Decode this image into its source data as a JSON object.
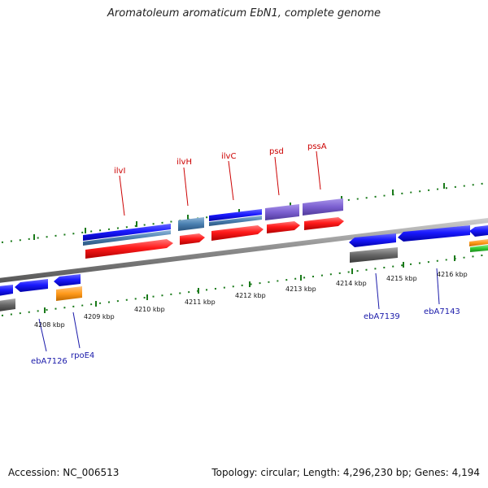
{
  "title": "Aromatoleum aromaticum EbN1, complete genome",
  "footer": {
    "accession": "Accession: NC_006513",
    "summary": "Topology: circular; Length: 4,296,230 bp; Genes: 4,194"
  },
  "genome_axis": {
    "unit": "kbp",
    "tick_labels": [
      "4208 kbp",
      "4209 kbp",
      "4210 kbp",
      "4211 kbp",
      "4212 kbp",
      "4213 kbp",
      "4214 kbp",
      "4215 kbp",
      "4216 kbp"
    ]
  },
  "gene_labels": {
    "forward": [
      "ilvI",
      "ilvH",
      "ilvC",
      "psd",
      "pssA"
    ],
    "reverse": [
      "ebA7126",
      "rpoE4",
      "ebA7139",
      "ebA7143"
    ]
  },
  "colors": {
    "forward_label": "#cc0000",
    "reverse_label": "#1a1aaa",
    "cds_red": "#ff1a1a",
    "gene_blue": "#1a1aff",
    "steel_blue": "#4a7fb0",
    "purple": "#7b5fd0",
    "orange": "#ff9a1a",
    "green": "#33cc33",
    "gray": "#666666",
    "tick_green": "#1a7a1a"
  }
}
